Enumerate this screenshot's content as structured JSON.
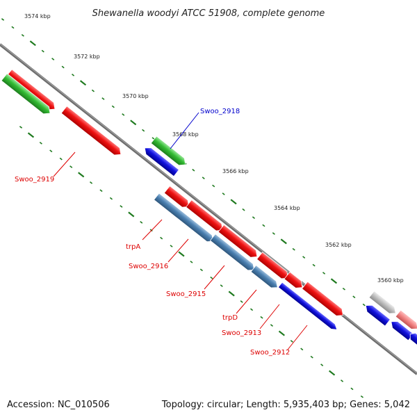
{
  "title": "Shewanella woodyi ATCC 51908, complete genome",
  "footer": {
    "accession": "Accession: NC_010506",
    "summary": "Topology: circular; Length: 5,935,403 bp; Genes: 5,042"
  },
  "colors": {
    "backbone": "#7a7a7a",
    "tick": "#1f7a1f",
    "gene_red": "#ee1111",
    "gene_green": "#33bb33",
    "gene_blue": "#1111dd",
    "gene_steelblue": "#4a7fb0",
    "gene_grey": "#bbbbbb",
    "gene_pink": "#f08080",
    "label_red": "#dd0000",
    "label_blue": "#0000cc"
  },
  "kbp_labels": [
    "3574 kbp",
    "3572 kbp",
    "3570 kbp",
    "3568 kbp",
    "3566 kbp",
    "3564 kbp",
    "3562 kbp",
    "3560 kbp"
  ],
  "gene_labels": {
    "swoo_2918": "Swoo_2918",
    "swoo_2919": "Swoo_2919",
    "trpA": "trpA",
    "swoo_2916": "Swoo_2916",
    "swoo_2915": "Swoo_2915",
    "trpD": "trpD",
    "swoo_2913": "Swoo_2913",
    "swoo_2912": "Swoo_2912"
  }
}
